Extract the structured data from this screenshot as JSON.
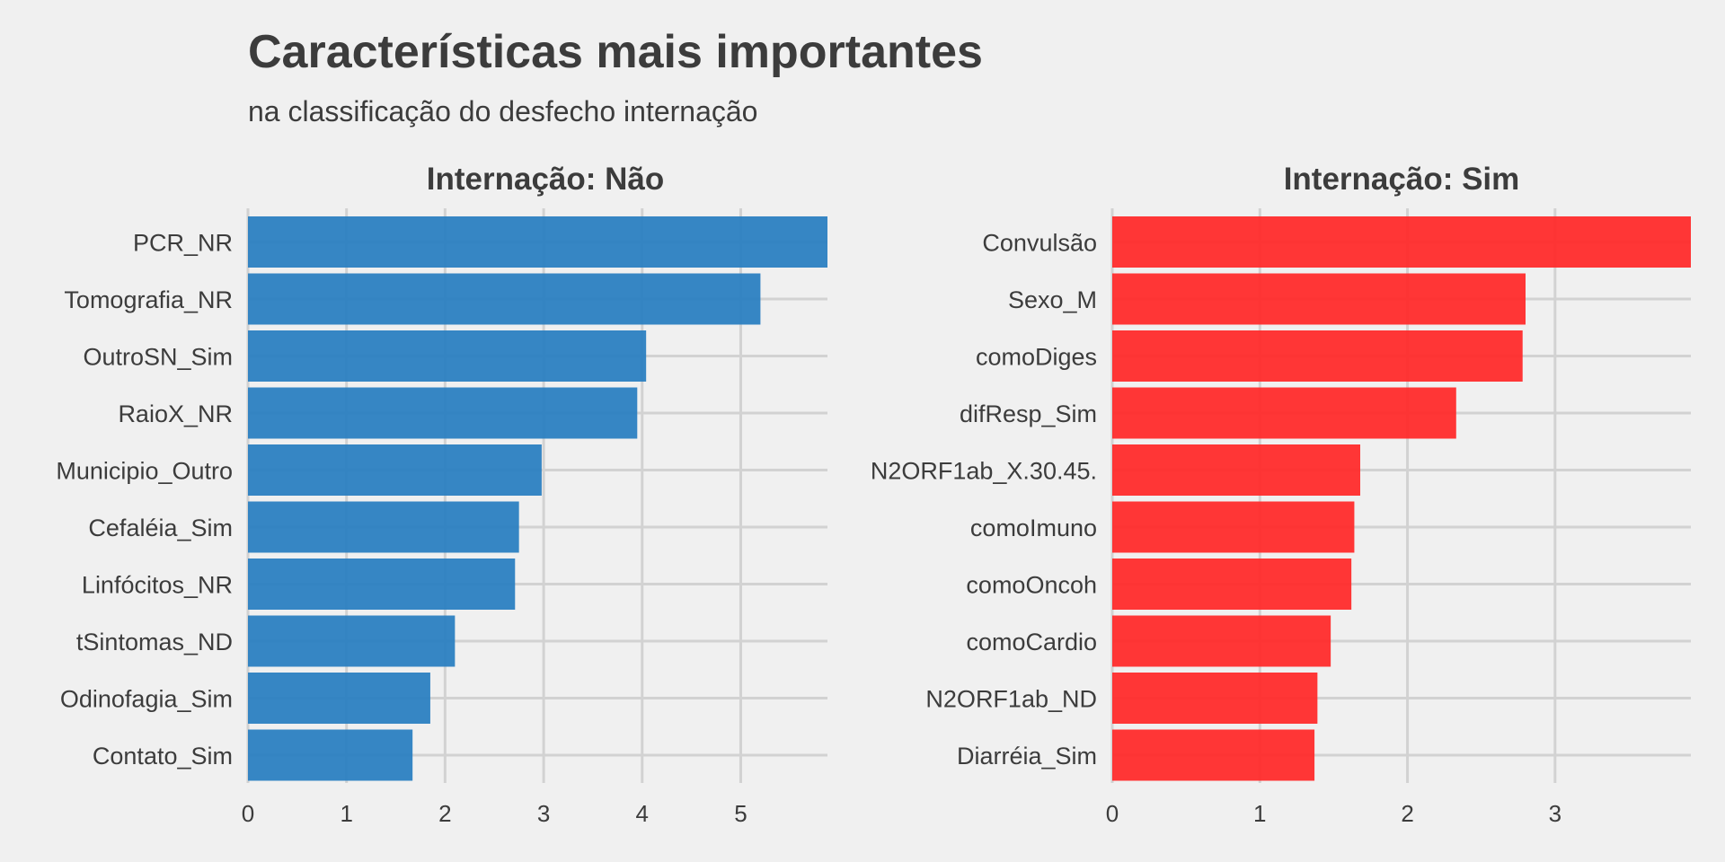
{
  "header": {
    "title": "Características mais importantes",
    "subtitle": "na classificação do desfecho internação"
  },
  "chart_data": [
    {
      "type": "bar",
      "orientation": "horizontal",
      "title": "Internação: Não",
      "categories": [
        "PCR_NR",
        "Tomografia_NR",
        "OutroSN_Sim",
        "RaioX_NR",
        "Municipio_Outro",
        "Cefaléia_Sim",
        "Linfócitos_NR",
        "tSintomas_ND",
        "Odinofagia_Sim",
        "Contato_Sim"
      ],
      "values": [
        5.88,
        5.2,
        4.04,
        3.95,
        2.98,
        2.75,
        2.71,
        2.1,
        1.85,
        1.67
      ],
      "xlim": [
        0,
        5.88
      ],
      "xticks": [
        0,
        1,
        2,
        3,
        4,
        5
      ],
      "color": "#2b7fc1",
      "grid": true
    },
    {
      "type": "bar",
      "orientation": "horizontal",
      "title": "Internação: Sim",
      "categories": [
        "Convulsão",
        "Sexo_M",
        "comoDiges",
        "difResp_Sim",
        "N2ORF1ab_X.30.45.",
        "comoImuno",
        "comoOncoh",
        "comoCardio",
        "N2ORF1ab_ND",
        "Diarréia_Sim"
      ],
      "values": [
        3.92,
        2.8,
        2.78,
        2.33,
        1.68,
        1.64,
        1.62,
        1.48,
        1.39,
        1.37
      ],
      "xlim": [
        0,
        3.92
      ],
      "xticks": [
        0,
        1,
        2,
        3
      ],
      "color": "#ff2b2b",
      "grid": true
    }
  ]
}
